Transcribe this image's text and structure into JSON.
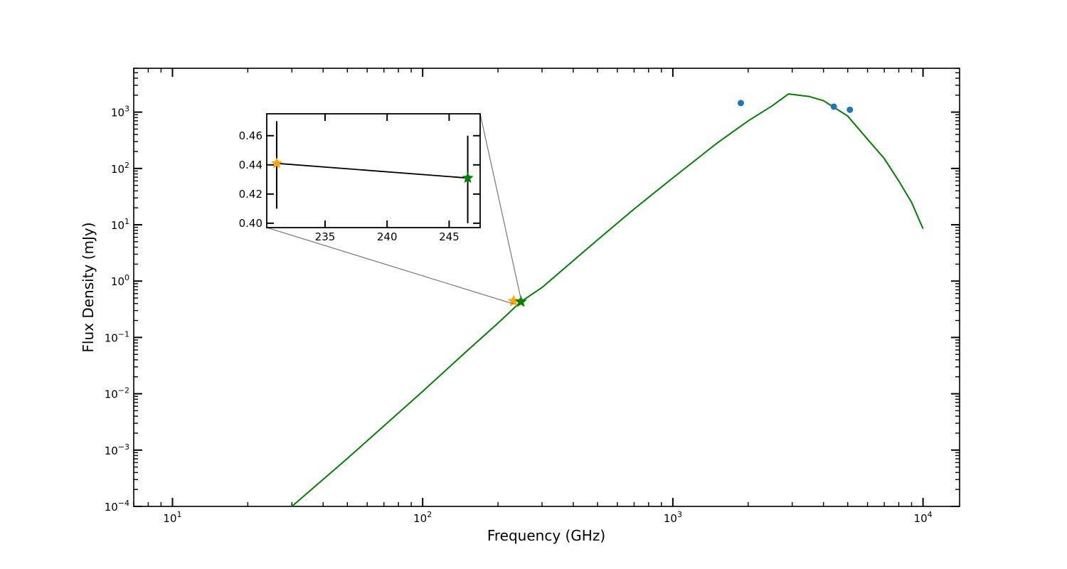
{
  "chart_data": {
    "type": "line",
    "xlabel": "Frequency (GHz)",
    "ylabel": "Flux Density (mJy)",
    "x_scale": "log",
    "y_scale": "log",
    "xlim": [
      7.0,
      14000
    ],
    "ylim": [
      0.0001,
      6000
    ],
    "grid": false,
    "x_ticks": [
      {
        "value": 10,
        "base": "10",
        "exp": "1"
      },
      {
        "value": 100,
        "base": "10",
        "exp": "2"
      },
      {
        "value": 1000,
        "base": "10",
        "exp": "3"
      },
      {
        "value": 10000,
        "base": "10",
        "exp": "4"
      }
    ],
    "y_ticks": [
      {
        "value": 0.0001,
        "base": "10",
        "exp": "−4"
      },
      {
        "value": 0.001,
        "base": "10",
        "exp": "−3"
      },
      {
        "value": 0.01,
        "base": "10",
        "exp": "−2"
      },
      {
        "value": 0.1,
        "base": "10",
        "exp": "−1"
      },
      {
        "value": 1,
        "base": "10",
        "exp": "0"
      },
      {
        "value": 10,
        "base": "10",
        "exp": "1"
      },
      {
        "value": 100,
        "base": "10",
        "exp": "2"
      },
      {
        "value": 1000,
        "base": "10",
        "exp": "3"
      }
    ],
    "series": [
      {
        "kind": "line",
        "color": "#008000",
        "x": [
          30,
          50,
          100,
          150,
          200,
          247,
          300,
          500,
          700,
          1000,
          1500,
          2000,
          2500,
          2900,
          3500,
          4000,
          5000,
          6000,
          7000,
          8000,
          9000,
          10000
        ],
        "y": [
          0.0001,
          0.00071,
          0.011,
          0.057,
          0.18,
          0.43,
          0.77,
          5.4,
          19,
          68,
          280,
          700,
          1300,
          2100,
          1900,
          1600,
          850,
          330,
          150,
          60,
          25,
          8.5
        ]
      },
      {
        "kind": "scatter",
        "marker": "circle",
        "color": "#1f77b4",
        "x": [
          1870,
          4400,
          5100
        ],
        "y": [
          1450,
          1250,
          1100
        ]
      },
      {
        "kind": "scatter",
        "marker": "star",
        "color": "#ffa500",
        "x": [
          231
        ],
        "y": [
          0.441
        ]
      },
      {
        "kind": "scatter",
        "marker": "star",
        "color": "#008000",
        "x": [
          247
        ],
        "y": [
          0.431
        ]
      }
    ],
    "inset": {
      "xlim": [
        230.3,
        247.5
      ],
      "ylim": [
        0.397,
        0.475
      ],
      "x_ticks": [
        "235",
        "240",
        "245"
      ],
      "y_ticks": [
        "0.40",
        "0.42",
        "0.44",
        "0.46"
      ],
      "line_color": "#000000",
      "points": [
        {
          "x": 231.1,
          "y": 0.441,
          "color": "#ffa500",
          "err_low": 0.41,
          "err_high": 0.47
        },
        {
          "x": 246.5,
          "y": 0.431,
          "color": "#008000",
          "err_low": 0.4,
          "err_high": 0.46
        }
      ],
      "connector_color": "#808080"
    }
  }
}
